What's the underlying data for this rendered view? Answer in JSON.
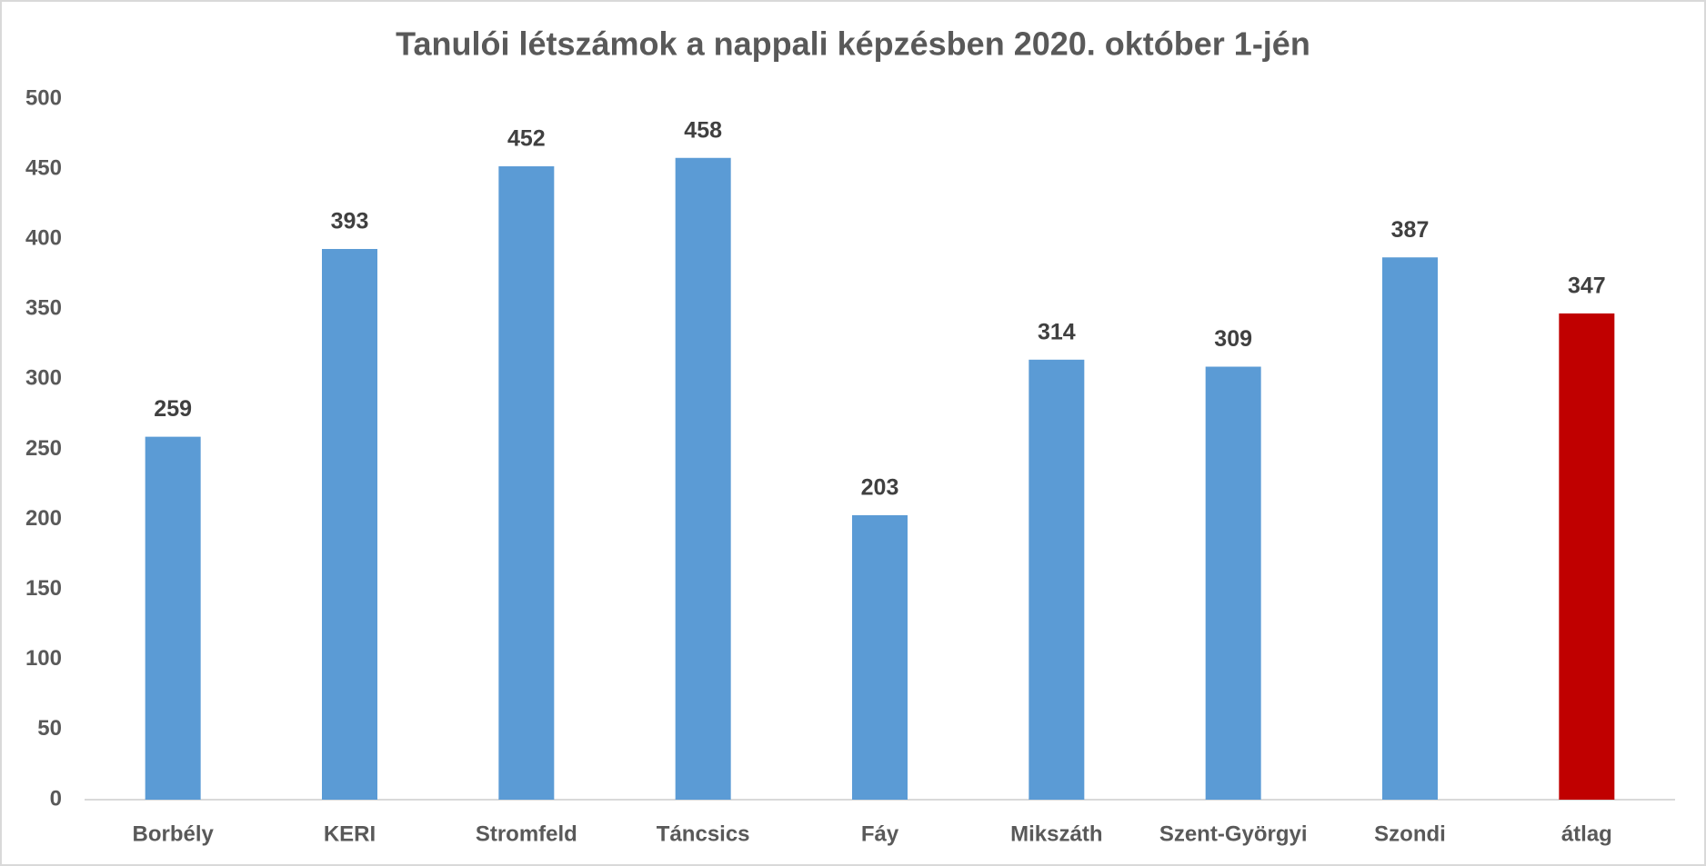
{
  "chart_data": {
    "type": "bar",
    "title": "Tanulói létszámok a nappali képzésben 2020. október 1-jén",
    "categories": [
      "Borbély",
      "KERI",
      "Stromfeld",
      "Táncsics",
      "Fáy",
      "Mikszáth",
      "Szent-Györgyi",
      "Szondi",
      "átlag"
    ],
    "values": [
      259,
      393,
      452,
      458,
      203,
      314,
      309,
      387,
      347
    ],
    "colors": [
      "#5b9bd5",
      "#5b9bd5",
      "#5b9bd5",
      "#5b9bd5",
      "#5b9bd5",
      "#5b9bd5",
      "#5b9bd5",
      "#5b9bd5",
      "#c00000"
    ],
    "ylim": [
      0,
      500
    ],
    "yticks": [
      0,
      50,
      100,
      150,
      200,
      250,
      300,
      350,
      400,
      450,
      500
    ],
    "grid": false
  }
}
